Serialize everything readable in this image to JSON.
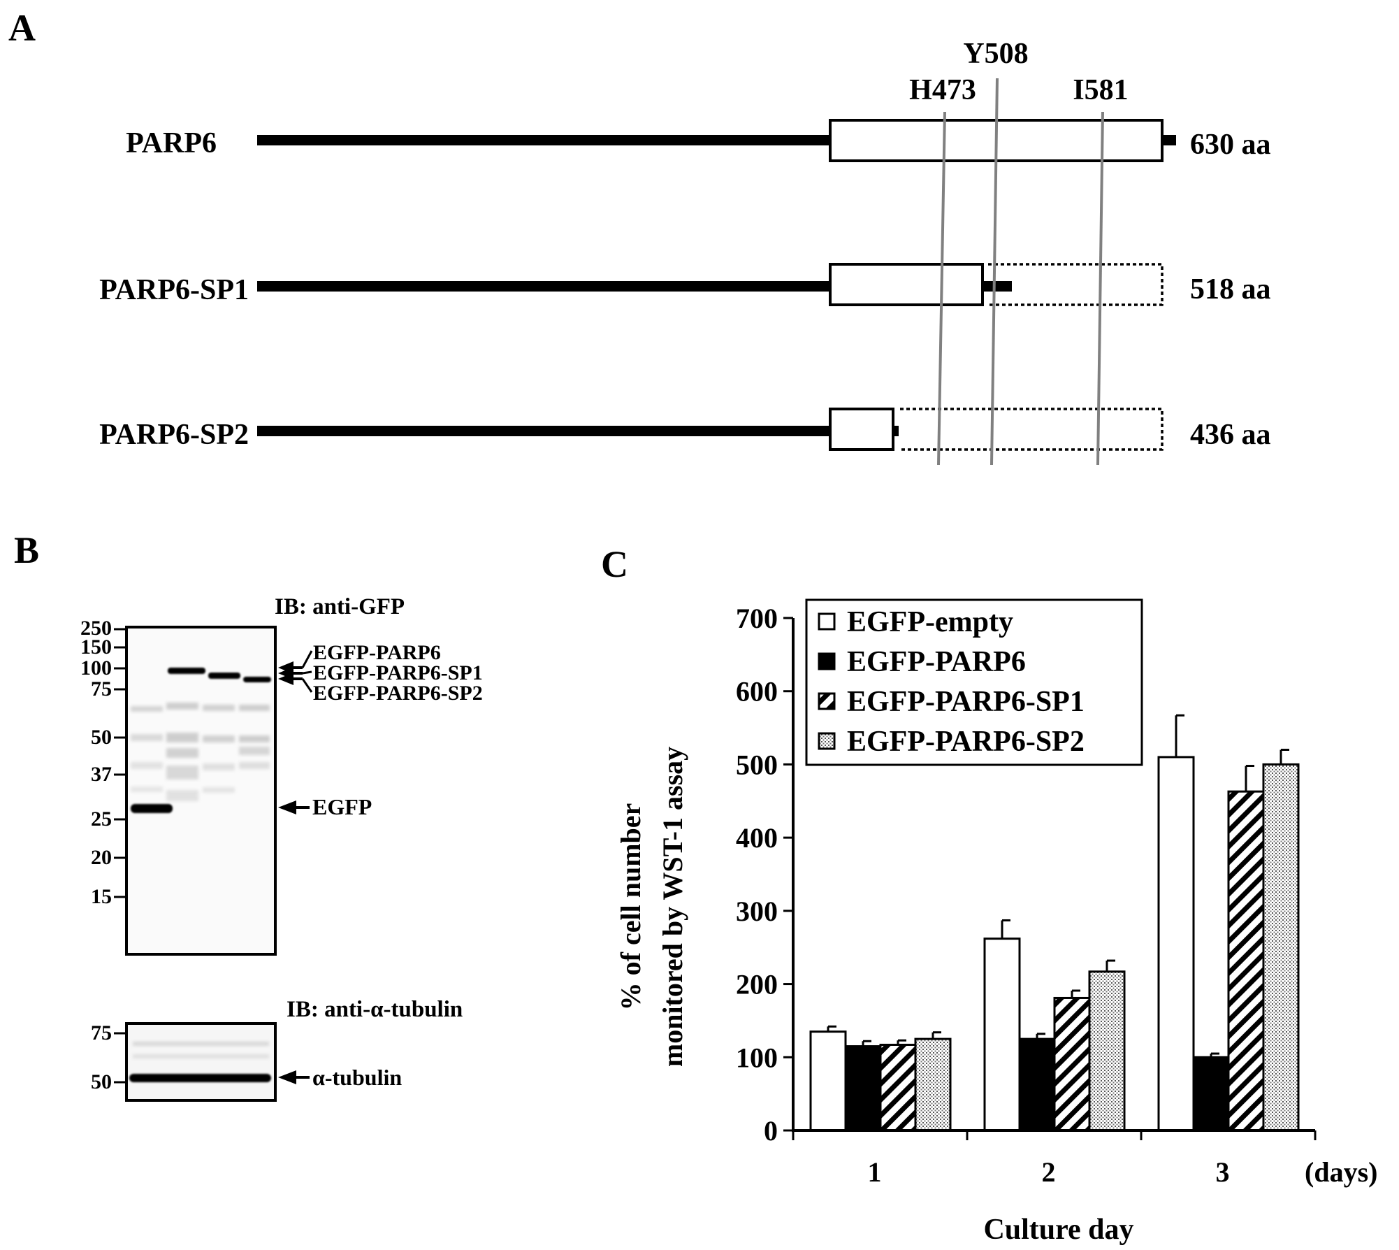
{
  "panel_labels": {
    "a": "A",
    "b": "B",
    "c": "C"
  },
  "panel_a": {
    "sites": [
      "H473",
      "Y508",
      "I581"
    ],
    "constructs": [
      {
        "name": "PARP6",
        "length": "630 aa"
      },
      {
        "name": "PARP6-SP1",
        "length": "518 aa"
      },
      {
        "name": "PARP6-SP2",
        "length": "436 aa"
      }
    ]
  },
  "panel_b": {
    "blot_top_title": "IB: anti-GFP",
    "blot_bottom_title": "IB: anti-α-tubulin",
    "top_markers": [
      "250",
      "150",
      "100",
      "75",
      "50",
      "37",
      "25",
      "20",
      "15"
    ],
    "bottom_markers": [
      "75",
      "50"
    ],
    "top_band_labels": [
      "EGFP-PARP6",
      "EGFP-PARP6-SP1",
      "EGFP-PARP6-SP2",
      "EGFP"
    ],
    "bottom_band_label": "α-tubulin"
  },
  "chart_data": {
    "type": "bar",
    "title": "",
    "xlabel": "Culture day",
    "x_unit": "(days)",
    "ylabel_line1": "% of cell number",
    "ylabel_line2": "monitored by WST-1 assay",
    "ylim": [
      0,
      700
    ],
    "yticks": [
      "0",
      "100",
      "200",
      "300",
      "400",
      "500",
      "600",
      "700"
    ],
    "categories": [
      "1",
      "2",
      "3"
    ],
    "legend_position": "top-left",
    "series": [
      {
        "name": "EGFP-empty",
        "fill": "white",
        "values": [
          135,
          262,
          510
        ],
        "errors": [
          7,
          25,
          57
        ]
      },
      {
        "name": "EGFP-PARP6",
        "fill": "black",
        "values": [
          115,
          125,
          100
        ],
        "errors": [
          7,
          7,
          5
        ]
      },
      {
        "name": "EGFP-PARP6-SP1",
        "fill": "hatched",
        "values": [
          117,
          181,
          463
        ],
        "errors": [
          6,
          10,
          35
        ]
      },
      {
        "name": "EGFP-PARP6-SP2",
        "fill": "dotted",
        "values": [
          125,
          217,
          500
        ],
        "errors": [
          9,
          15,
          20
        ]
      }
    ]
  }
}
